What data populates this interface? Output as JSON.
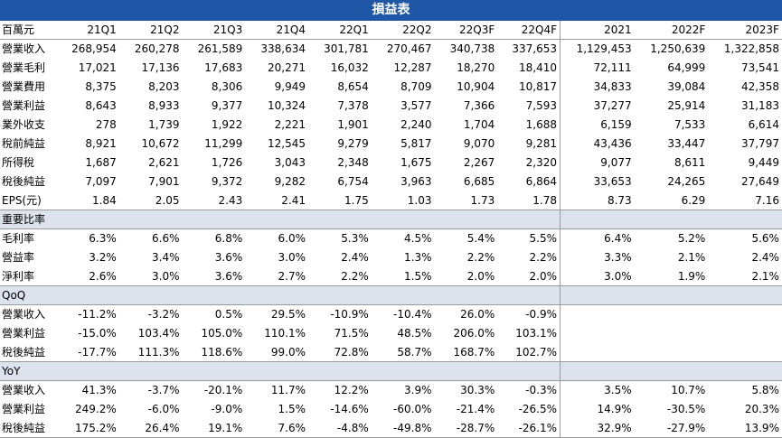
{
  "title": "損益表",
  "table": {
    "header": [
      "百萬元",
      "21Q1",
      "21Q2",
      "21Q3",
      "21Q4",
      "22Q1",
      "22Q2",
      "22Q3F",
      "22Q4F",
      "2021",
      "2022F",
      "2023F"
    ],
    "rows": [
      [
        "營業收入",
        "268,954",
        "260,278",
        "261,589",
        "338,634",
        "301,781",
        "270,467",
        "340,738",
        "337,653",
        "1,129,453",
        "1,250,639",
        "1,322,858"
      ],
      [
        "營業毛利",
        "17,021",
        "17,136",
        "17,683",
        "20,271",
        "16,032",
        "12,287",
        "18,270",
        "18,410",
        "72,111",
        "64,999",
        "73,541"
      ],
      [
        "營業費用",
        "8,375",
        "8,203",
        "8,306",
        "9,949",
        "8,654",
        "8,709",
        "10,904",
        "10,817",
        "34,833",
        "39,084",
        "42,358"
      ],
      [
        "營業利益",
        "8,643",
        "8,933",
        "9,377",
        "10,324",
        "7,378",
        "3,577",
        "7,366",
        "7,593",
        "37,277",
        "25,914",
        "31,183"
      ],
      [
        "業外收支",
        "278",
        "1,739",
        "1,922",
        "2,221",
        "1,901",
        "2,240",
        "1,704",
        "1,688",
        "6,159",
        "7,533",
        "6,614"
      ],
      [
        "稅前純益",
        "8,921",
        "10,672",
        "11,299",
        "12,545",
        "9,279",
        "5,817",
        "9,070",
        "9,281",
        "43,436",
        "33,447",
        "37,797"
      ],
      [
        "所得稅",
        "1,687",
        "2,621",
        "1,726",
        "3,043",
        "2,348",
        "1,675",
        "2,267",
        "2,320",
        "9,077",
        "8,611",
        "9,449"
      ],
      [
        "稅後純益",
        "7,097",
        "7,901",
        "9,372",
        "9,282",
        "6,754",
        "3,963",
        "6,685",
        "6,864",
        "33,653",
        "24,265",
        "27,649"
      ],
      [
        "EPS(元)",
        "1.84",
        "2.05",
        "2.43",
        "2.41",
        "1.75",
        "1.03",
        "1.73",
        "1.78",
        "8.73",
        "6.29",
        "7.16"
      ]
    ],
    "sections": [
      {
        "title": "重要比率",
        "rows": [
          [
            "毛利率",
            "6.3%",
            "6.6%",
            "6.8%",
            "6.0%",
            "5.3%",
            "4.5%",
            "5.4%",
            "5.5%",
            "6.4%",
            "5.2%",
            "5.6%"
          ],
          [
            "營益率",
            "3.2%",
            "3.4%",
            "3.6%",
            "3.0%",
            "2.4%",
            "1.3%",
            "2.2%",
            "2.2%",
            "3.3%",
            "2.1%",
            "2.4%"
          ],
          [
            "淨利率",
            "2.6%",
            "3.0%",
            "3.6%",
            "2.7%",
            "2.2%",
            "1.5%",
            "2.0%",
            "2.0%",
            "3.0%",
            "1.9%",
            "2.1%"
          ]
        ]
      },
      {
        "title": "QoQ",
        "rows": [
          [
            "營業收入",
            "-11.2%",
            "-3.2%",
            "0.5%",
            "29.5%",
            "-10.9%",
            "-10.4%",
            "26.0%",
            "-0.9%"
          ],
          [
            "營業利益",
            "-15.0%",
            "103.4%",
            "105.0%",
            "110.1%",
            "71.5%",
            "48.5%",
            "206.0%",
            "103.1%"
          ],
          [
            "稅後純益",
            "-17.7%",
            "111.3%",
            "118.6%",
            "99.0%",
            "72.8%",
            "58.7%",
            "168.7%",
            "102.7%"
          ]
        ]
      },
      {
        "title": "YoY",
        "rows": [
          [
            "營業收入",
            "41.3%",
            "-3.7%",
            "-20.1%",
            "11.7%",
            "12.2%",
            "3.9%",
            "30.3%",
            "-0.3%",
            "3.5%",
            "10.7%",
            "5.8%"
          ],
          [
            "營業利益",
            "249.2%",
            "-6.0%",
            "-9.0%",
            "1.5%",
            "-14.6%",
            "-60.0%",
            "-21.4%",
            "-26.5%",
            "14.9%",
            "-30.5%",
            "20.3%"
          ],
          [
            "稅後純益",
            "175.2%",
            "26.4%",
            "19.1%",
            "7.6%",
            "-4.8%",
            "-49.8%",
            "-28.7%",
            "-26.1%",
            "32.9%",
            "-27.9%",
            "13.9%"
          ]
        ]
      }
    ]
  }
}
